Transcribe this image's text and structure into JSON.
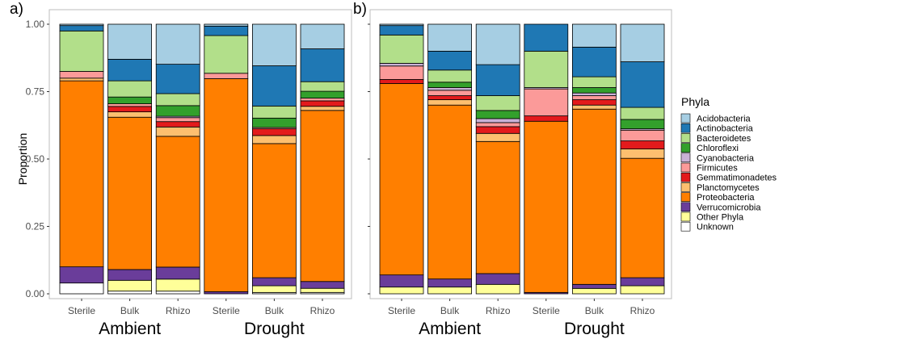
{
  "colors": {
    "Acidobacteria": "#a6cee3",
    "Actinobacteria": "#1f78b4",
    "Bacteroidetes": "#b2df8a",
    "Chloroflexi": "#33a02c",
    "Cyanobacteria": "#cab2d6",
    "Firmicutes": "#fb9a99",
    "Gemmatimonadetes": "#e31a1c",
    "Planctomycetes": "#fdbf6f",
    "Proteobacteria": "#ff7f00",
    "Verrucomicrobia": "#6a3d9a",
    "Other Phyla": "#ffff99",
    "Unknown": "#ffffff"
  },
  "chart_data": [
    {
      "type": "bar",
      "stacked": true,
      "panel_label": "a)",
      "ylabel": "Proportion",
      "ylim": [
        0,
        1
      ],
      "yticks": [
        "0.00",
        "0.25",
        "0.50",
        "0.75",
        "1.00"
      ],
      "categories": [
        "Sterile",
        "Bulk",
        "Rhizo",
        "Sterile",
        "Bulk",
        "Rhizo"
      ],
      "groups": [
        "Ambient",
        "Drought"
      ],
      "series": [
        {
          "name": "Unknown",
          "values": [
            0.04,
            0.01,
            0.01,
            0.0,
            0.005,
            0.005
          ]
        },
        {
          "name": "Other Phyla",
          "values": [
            0.0,
            0.04,
            0.045,
            0.0,
            0.025,
            0.015
          ]
        },
        {
          "name": "Verrucomicrobia",
          "values": [
            0.06,
            0.04,
            0.045,
            0.008,
            0.03,
            0.025
          ]
        },
        {
          "name": "Proteobacteria",
          "values": [
            0.69,
            0.565,
            0.49,
            0.79,
            0.5,
            0.625
          ]
        },
        {
          "name": "Planctomycetes",
          "values": [
            0.01,
            0.02,
            0.035,
            0.0,
            0.03,
            0.015
          ]
        },
        {
          "name": "Gemmatimonadetes",
          "values": [
            0.0,
            0.02,
            0.02,
            0.0,
            0.025,
            0.02
          ]
        },
        {
          "name": "Firmicutes",
          "values": [
            0.025,
            0.01,
            0.015,
            0.02,
            0.005,
            0.01
          ]
        },
        {
          "name": "Cyanobacteria",
          "values": [
            0.0,
            0.0,
            0.005,
            0.0,
            0.0,
            0.0
          ]
        },
        {
          "name": "Chloroflexi",
          "values": [
            0.0,
            0.025,
            0.04,
            0.0,
            0.035,
            0.025
          ]
        },
        {
          "name": "Bacteroidetes",
          "values": [
            0.15,
            0.06,
            0.045,
            0.14,
            0.045,
            0.035
          ]
        },
        {
          "name": "Actinobacteria",
          "values": [
            0.02,
            0.08,
            0.11,
            0.035,
            0.15,
            0.12
          ]
        },
        {
          "name": "Acidobacteria",
          "values": [
            0.005,
            0.13,
            0.15,
            0.007,
            0.155,
            0.09
          ]
        }
      ]
    },
    {
      "type": "bar",
      "stacked": true,
      "panel_label": "b)",
      "ylabel": "",
      "ylim": [
        0,
        1
      ],
      "categories": [
        "Sterile",
        "Bulk",
        "Rhizo",
        "Sterile",
        "Bulk",
        "Rhizo"
      ],
      "groups": [
        "Ambient",
        "Drought"
      ],
      "series": [
        {
          "name": "Unknown",
          "values": [
            0.0,
            0.0,
            0.0,
            0.0,
            0.0,
            0.0
          ]
        },
        {
          "name": "Other Phyla",
          "values": [
            0.025,
            0.025,
            0.035,
            0.0,
            0.02,
            0.03
          ]
        },
        {
          "name": "Verrucomicrobia",
          "values": [
            0.045,
            0.03,
            0.04,
            0.005,
            0.015,
            0.03
          ]
        },
        {
          "name": "Proteobacteria",
          "values": [
            0.71,
            0.645,
            0.49,
            0.635,
            0.65,
            0.445
          ]
        },
        {
          "name": "Planctomycetes",
          "values": [
            0.0,
            0.02,
            0.03,
            0.0,
            0.015,
            0.035
          ]
        },
        {
          "name": "Gemmatimonadetes",
          "values": [
            0.015,
            0.015,
            0.025,
            0.02,
            0.02,
            0.03
          ]
        },
        {
          "name": "Firmicutes",
          "values": [
            0.05,
            0.02,
            0.015,
            0.1,
            0.015,
            0.04
          ]
        },
        {
          "name": "Cyanobacteria",
          "values": [
            0.01,
            0.01,
            0.015,
            0.005,
            0.01,
            0.005
          ]
        },
        {
          "name": "Chloroflexi",
          "values": [
            0.0,
            0.02,
            0.03,
            0.0,
            0.02,
            0.035
          ]
        },
        {
          "name": "Bacteroidetes",
          "values": [
            0.105,
            0.045,
            0.055,
            0.135,
            0.04,
            0.045
          ]
        },
        {
          "name": "Actinobacteria",
          "values": [
            0.035,
            0.07,
            0.115,
            0.1,
            0.11,
            0.17
          ]
        },
        {
          "name": "Acidobacteria",
          "values": [
            0.005,
            0.1,
            0.15,
            0.0,
            0.085,
            0.14
          ]
        }
      ]
    }
  ],
  "legend": {
    "title": "Phyla",
    "items": [
      "Acidobacteria",
      "Actinobacteria",
      "Bacteroidetes",
      "Chloroflexi",
      "Cyanobacteria",
      "Firmicutes",
      "Gemmatimonadetes",
      "Planctomycetes",
      "Proteobacteria",
      "Verrucomicrobia",
      "Other Phyla",
      "Unknown"
    ]
  }
}
